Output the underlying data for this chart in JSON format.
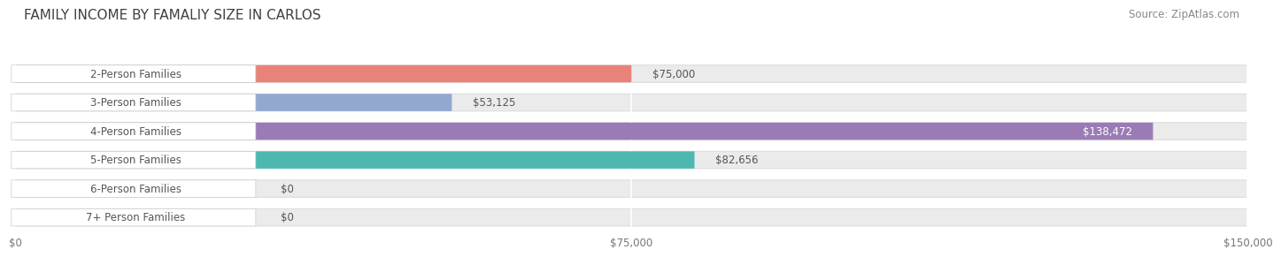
{
  "title": "FAMILY INCOME BY FAMALIY SIZE IN CARLOS",
  "source": "Source: ZipAtlas.com",
  "categories": [
    "2-Person Families",
    "3-Person Families",
    "4-Person Families",
    "5-Person Families",
    "6-Person Families",
    "7+ Person Families"
  ],
  "values": [
    75000,
    53125,
    138472,
    82656,
    0,
    0
  ],
  "colors": [
    "#E8837A",
    "#92A8D1",
    "#9B7BB5",
    "#4DB8B0",
    "#A8A8D8",
    "#F0A0B0"
  ],
  "value_labels": [
    "$75,000",
    "$53,125",
    "$138,472",
    "$82,656",
    "$0",
    "$0"
  ],
  "xlim": [
    0,
    150000
  ],
  "xticks": [
    0,
    75000,
    150000
  ],
  "xtick_labels": [
    "$0",
    "$75,000",
    "$150,000"
  ],
  "background_color": "#ffffff",
  "bar_bg_color": "#ebebeb",
  "bar_bg_border": "#dddddd",
  "title_fontsize": 11,
  "source_fontsize": 8.5,
  "label_fontsize": 8.5,
  "value_fontsize": 8.5,
  "label_text_color": "#555555",
  "value_label_color_outside": "#555555",
  "value_label_color_inside": "#ffffff"
}
